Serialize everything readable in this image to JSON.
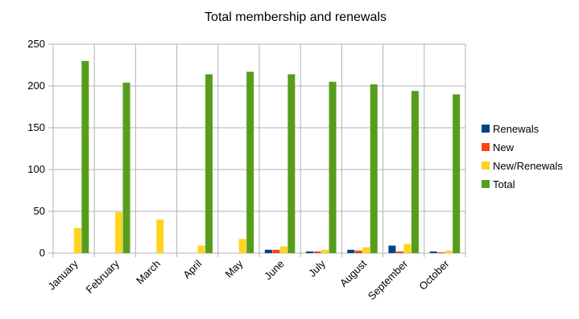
{
  "chart_data": {
    "type": "bar",
    "title": "Total membership and renewals",
    "xlabel": "",
    "ylabel": "",
    "categories": [
      "January",
      "February",
      "March",
      "April",
      "May",
      "June",
      "July",
      "August",
      "September",
      "October"
    ],
    "ylim": [
      0,
      250
    ],
    "yticks": [
      0,
      50,
      100,
      150,
      200,
      250
    ],
    "grid": true,
    "legend_position": "right",
    "series": [
      {
        "name": "Renewals",
        "color": "#004586",
        "values": [
          0,
          0,
          0,
          0,
          0,
          4,
          2,
          4,
          9,
          2
        ]
      },
      {
        "name": "New",
        "color": "#ff420e",
        "values": [
          0,
          0,
          0,
          0,
          0,
          4,
          2,
          3,
          2,
          1
        ]
      },
      {
        "name": "New/Renewals",
        "color": "#ffd320",
        "values": [
          30,
          49,
          40,
          9,
          17,
          8,
          4,
          7,
          11,
          3
        ]
      },
      {
        "name": "Total",
        "color": "#579d1c",
        "values": [
          230,
          204,
          0,
          214,
          217,
          214,
          205,
          202,
          194,
          190
        ]
      }
    ]
  }
}
